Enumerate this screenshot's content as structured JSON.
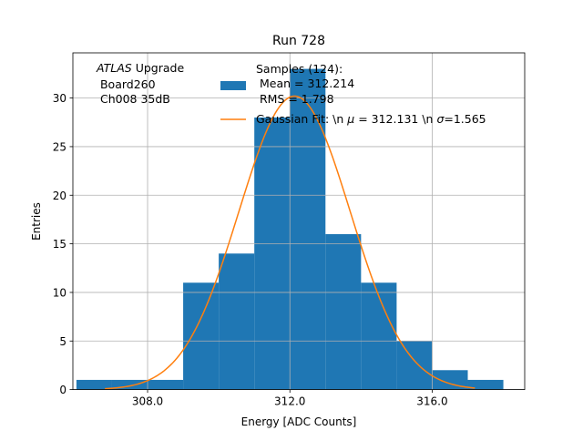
{
  "chart_data": {
    "type": "bar",
    "title": "Run 728",
    "xlabel": "Energy [ADC Counts]",
    "ylabel": "Entries",
    "xlim": [
      305.9,
      318.6
    ],
    "ylim": [
      0,
      34.65
    ],
    "xticks": [
      308.0,
      312.0,
      316.0
    ],
    "xtick_labels": [
      "308.0",
      "312.0",
      "316.0"
    ],
    "yticks": [
      0,
      5,
      10,
      15,
      20,
      25,
      30
    ],
    "ytick_labels": [
      "0",
      "5",
      "10",
      "15",
      "20",
      "25",
      "30"
    ],
    "grid": true,
    "histogram": {
      "name": "Samples (124):\n Mean = 312.214\n RMS = 1.798",
      "bin_edges": [
        306,
        307,
        308,
        309,
        310,
        311,
        312,
        313,
        314,
        315,
        316,
        317,
        318
      ],
      "counts": [
        1,
        1,
        1,
        11,
        14,
        28,
        33,
        16,
        11,
        5,
        2,
        1
      ],
      "color": "#1f77b4"
    },
    "fit": {
      "name": "Gaussian Fit: \\n $\\mu$ = 312.131 \\n $\\sigma$=1.565",
      "mu": 312.131,
      "sigma": 1.565,
      "amplitude": 30.2,
      "x_range": [
        306.8,
        317.2
      ],
      "color": "#ff7f0e"
    },
    "legend": {
      "placement": "top-right",
      "samples_lines": [
        "Samples (124):",
        " Mean = 312.214",
        " RMS = 1.798"
      ],
      "fit_prefix": "Gaussian Fit: \\n ",
      "fit_mu": " = 312.131 \\n ",
      "fit_sigma": "=1.565"
    },
    "annotation": {
      "italic": "ATLAS",
      "rest": " Upgrade",
      "line2": " Board260",
      "line3": " Ch008 35dB"
    }
  }
}
